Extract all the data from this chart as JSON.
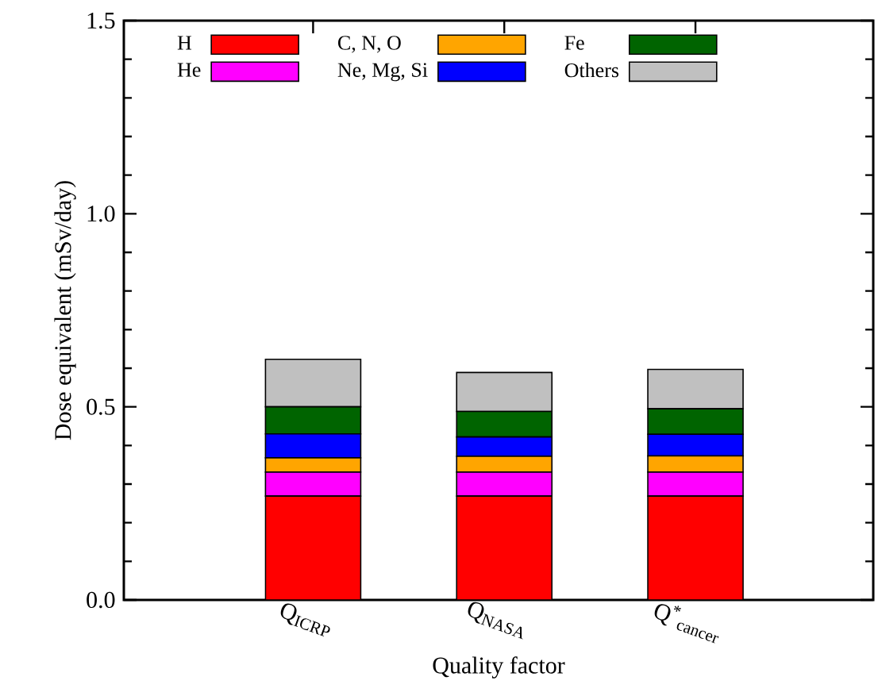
{
  "chart_data": {
    "type": "bar",
    "stacked": true,
    "xlabel": "Quality factor",
    "ylabel": "Dose equivalent (mSv/day)",
    "categories": [
      "Q$_{ICRP}$",
      "Q$_{NASA}$",
      "Q$^{*}$$_{cancer}$"
    ],
    "ylim": [
      0,
      1.5
    ],
    "yticks": [
      {
        "value": 0,
        "label": "0.0"
      },
      {
        "value": 0.5,
        "label": "0.5"
      },
      {
        "value": 1,
        "label": "1.0"
      },
      {
        "value": 1.5,
        "label": "1.5"
      }
    ],
    "legend": "top",
    "series": [
      {
        "name": "H",
        "color": "#ff0000",
        "values": [
          0.269,
          0.269,
          0.269
        ]
      },
      {
        "name": "He",
        "color": "#ff00ff",
        "values": [
          0.062,
          0.062,
          0.062
        ]
      },
      {
        "name": "C, N, O",
        "color": "#ffa500",
        "values": [
          0.037,
          0.041,
          0.042
        ]
      },
      {
        "name": "Ne, Mg, Si",
        "color": "#0000ff",
        "values": [
          0.062,
          0.05,
          0.056
        ]
      },
      {
        "name": "Fe",
        "color": "#006400",
        "values": [
          0.07,
          0.066,
          0.066
        ]
      },
      {
        "name": "Others",
        "color": "#c0c0c0",
        "values": [
          0.123,
          0.101,
          0.102
        ]
      }
    ]
  }
}
